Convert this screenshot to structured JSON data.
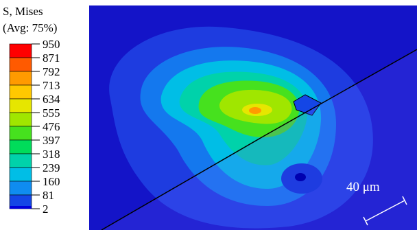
{
  "legend": {
    "title": "S, Mises",
    "subtitle": "(Avg: 75%)",
    "labels": [
      "950",
      "871",
      "792",
      "713",
      "634",
      "555",
      "476",
      "397",
      "318",
      "239",
      "160",
      "81",
      "2"
    ],
    "colors": [
      "#ff0000",
      "#ff5a00",
      "#ff9a00",
      "#ffc800",
      "#e6e600",
      "#a0e600",
      "#46e11e",
      "#00dc5a",
      "#00d2aa",
      "#00bee6",
      "#0f8cf0",
      "#1446e6",
      "#0000dc"
    ]
  },
  "scale_bar": {
    "label": "40 μm"
  }
}
